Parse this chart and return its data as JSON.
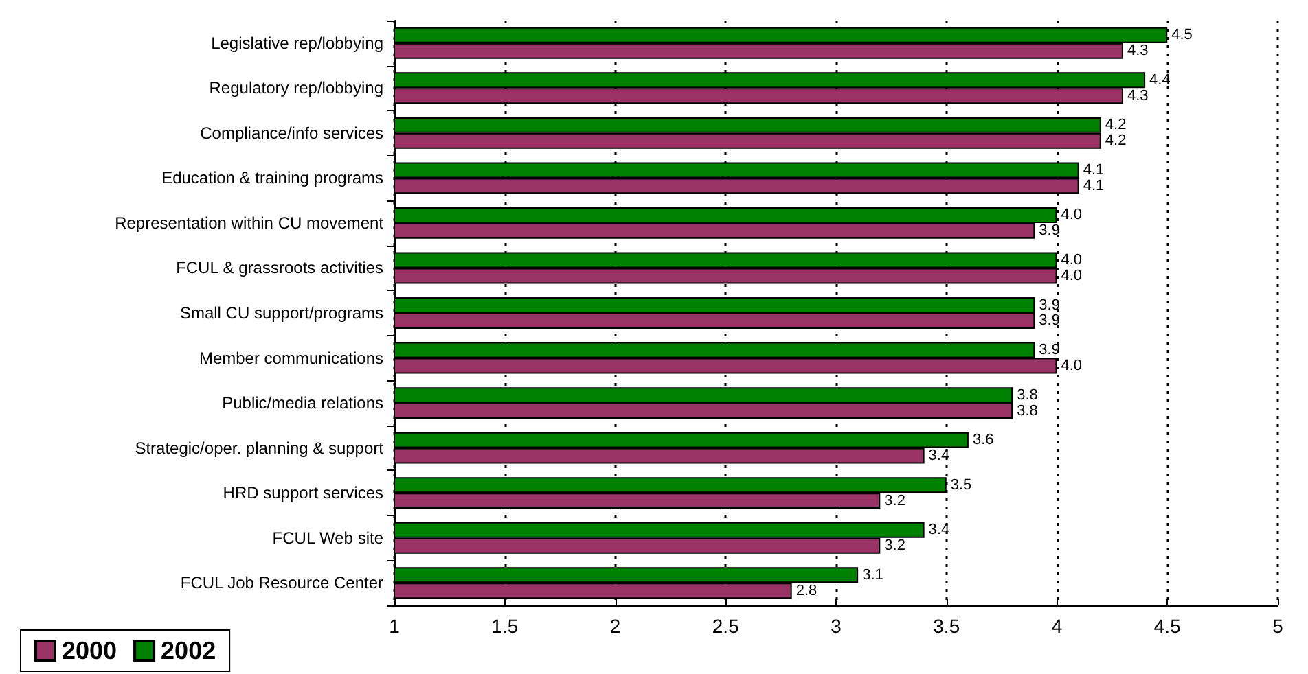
{
  "chart_data": {
    "type": "bar",
    "orientation": "horizontal",
    "categories": [
      "Legislative rep/lobbying",
      "Regulatory rep/lobbying",
      "Compliance/info services",
      "Education & training programs",
      "Representation within CU movement",
      "FCUL & grassroots activities",
      "Small CU support/programs",
      "Member communications",
      "Public/media relations",
      "Strategic/oper. planning & support",
      "HRD support services",
      "FCUL Web site",
      "FCUL Job Resource Center"
    ],
    "series": [
      {
        "name": "2000",
        "color": "#993366",
        "values": [
          4.3,
          4.3,
          4.2,
          4.1,
          3.9,
          4.0,
          3.9,
          4.0,
          3.8,
          3.4,
          3.2,
          3.2,
          2.8
        ],
        "value_labels": [
          "4.3",
          "4.3",
          "4.2",
          "4.1",
          "3.9",
          "4.0",
          "3.9",
          "4.0",
          "3.8",
          "3.4",
          "3.2",
          "3.2",
          "2.8"
        ]
      },
      {
        "name": "2002",
        "color": "#008000",
        "values": [
          4.5,
          4.4,
          4.2,
          4.1,
          4.0,
          4.0,
          3.9,
          3.9,
          3.8,
          3.6,
          3.5,
          3.4,
          3.1
        ],
        "value_labels": [
          "4.5",
          "4.4",
          "4.2",
          "4.1",
          "4.0",
          "4.0",
          "3.9",
          "3.9",
          "3.8",
          "3.6",
          "3.5",
          "3.4",
          "3.1"
        ]
      }
    ],
    "xlim": [
      1,
      5
    ],
    "xticks": [
      1,
      1.5,
      2,
      2.5,
      3,
      3.5,
      4,
      4.5,
      5
    ],
    "grid": "x",
    "legend": "bottom left"
  }
}
